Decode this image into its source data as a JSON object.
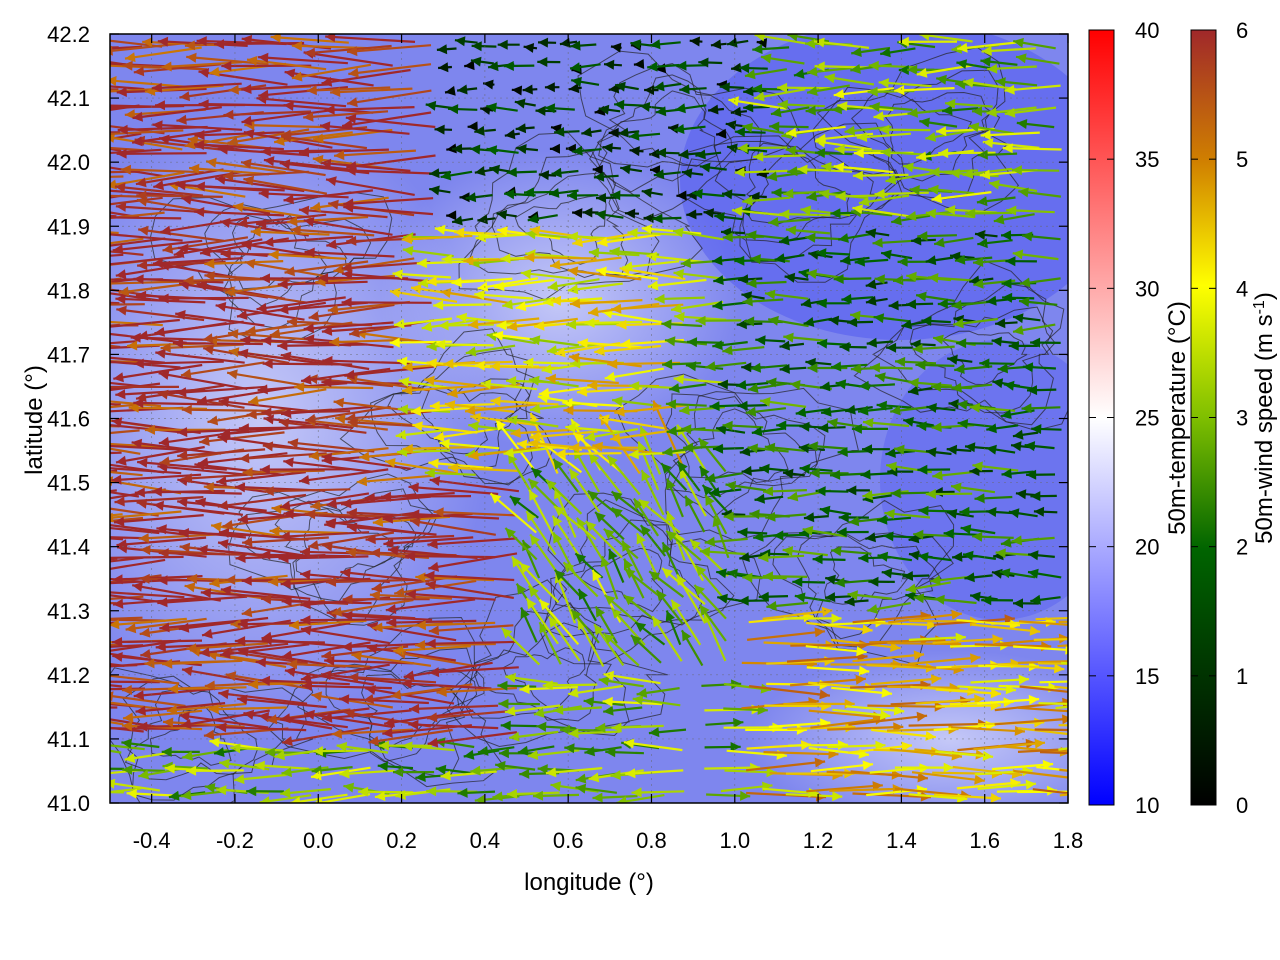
{
  "chart_data": {
    "type": "vector-field",
    "title": "",
    "xlabel": "longitude (°)",
    "ylabel": "latitude (°)",
    "xlim": [
      -0.5,
      1.8
    ],
    "ylim": [
      41.0,
      42.2
    ],
    "x_ticks": [
      "-0.4",
      "-0.2",
      "0.0",
      "0.2",
      "0.4",
      "0.6",
      "0.8",
      "1.0",
      "1.2",
      "1.4",
      "1.6",
      "1.8"
    ],
    "y_ticks": [
      "41.0",
      "41.1",
      "41.2",
      "41.3",
      "41.4",
      "41.5",
      "41.6",
      "41.7",
      "41.8",
      "41.9",
      "42.0",
      "42.1",
      "42.2"
    ],
    "background_field": {
      "name": "50m-temperature",
      "unit": "°C",
      "label": "50m-temperature (°C)",
      "range": [
        10,
        40
      ],
      "ticks": [
        "10",
        "15",
        "20",
        "25",
        "30",
        "35",
        "40"
      ],
      "colors": [
        "#0000ff",
        "#ffffff",
        "#ff0000"
      ],
      "typical_value": 17
    },
    "vector_field": {
      "name": "50m-wind speed",
      "label_main": "50m-wind speed (m s",
      "label_sup": "-1",
      "label_end": ")",
      "range": [
        0,
        6
      ],
      "ticks": [
        "0",
        "1",
        "2",
        "3",
        "4",
        "5",
        "6"
      ],
      "colors": [
        "#000000",
        "#006400",
        "#7fbf00",
        "#ffff00",
        "#d08000",
        "#a0282a"
      ],
      "dominant_direction": "westward (toward -x)",
      "regions": [
        {
          "x": [
            -0.5,
            0.5
          ],
          "y": [
            41.1,
            42.2
          ],
          "speed": 6
        },
        {
          "x": [
            0.3,
            0.9
          ],
          "y": [
            41.5,
            42.0
          ],
          "speed": 4
        },
        {
          "x": [
            0.3,
            1.1
          ],
          "y": [
            41.9,
            42.2
          ],
          "speed": 1
        },
        {
          "x": [
            1.0,
            1.8
          ],
          "y": [
            41.3,
            41.9
          ],
          "speed": 2
        },
        {
          "x": [
            1.0,
            1.8
          ],
          "y": [
            41.0,
            41.3
          ],
          "speed": 4.5
        }
      ]
    },
    "contours": "black terrain contour lines",
    "grid": true,
    "legend": "two colorbars on the right"
  }
}
